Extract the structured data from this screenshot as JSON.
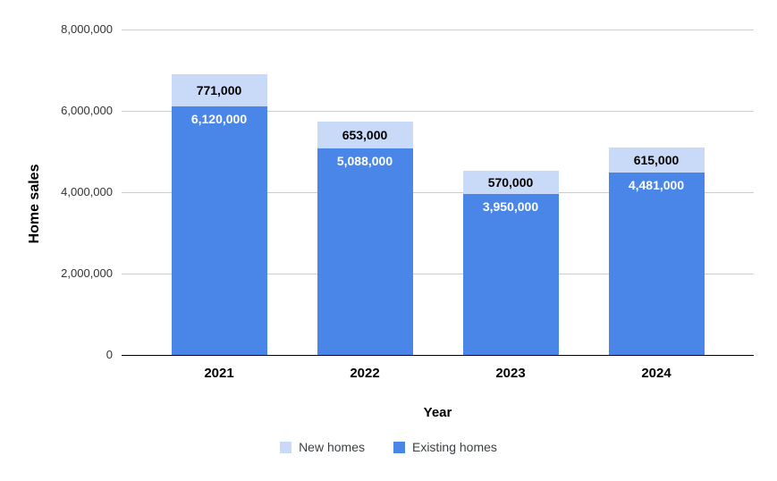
{
  "chart_data": {
    "type": "bar",
    "stacked": true,
    "title": "",
    "xlabel": "Year",
    "ylabel": "Home sales",
    "categories": [
      "2021",
      "2022",
      "2023",
      "2024"
    ],
    "series": [
      {
        "name": "New homes",
        "color": "#c9daf8",
        "label_color": "#000000",
        "values": [
          771000,
          653000,
          570000,
          615000
        ],
        "labels": [
          "771,000",
          "653,000",
          "570,000",
          "615,000"
        ]
      },
      {
        "name": "Existing homes",
        "color": "#4a86e8",
        "label_color": "#ffffff",
        "values": [
          6120000,
          5088000,
          3950000,
          4481000
        ],
        "labels": [
          "6,120,000",
          "5,088,000",
          "3,950,000",
          "4,481,000"
        ]
      }
    ],
    "stack_order_bottom_to_top": [
      "Existing homes",
      "New homes"
    ],
    "ylim": [
      0,
      8000000
    ],
    "yticks": [
      0,
      2000000,
      4000000,
      6000000,
      8000000
    ],
    "ytick_labels": [
      "0",
      "2,000,000",
      "4,000,000",
      "6,000,000",
      "8,000,000"
    ],
    "grid": true,
    "legend_position": "bottom",
    "colors": {
      "background": "#ffffff",
      "gridline": "#cccccc",
      "axis_line": "#000000",
      "ytick_label": "#333333",
      "xtick_label": "#000000",
      "axis_title": "#000000",
      "legend_text": "#3c4043"
    }
  }
}
